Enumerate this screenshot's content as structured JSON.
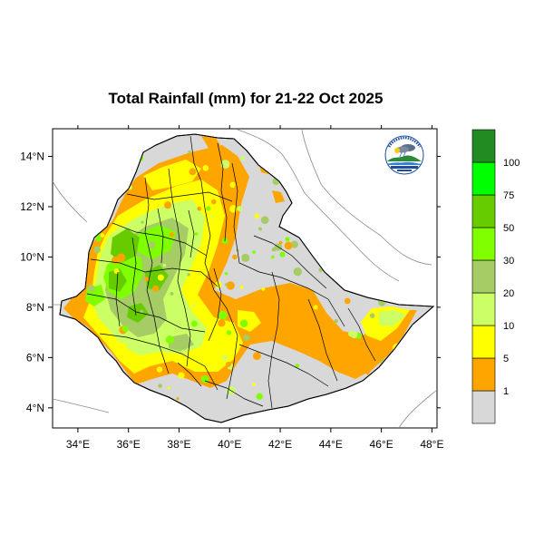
{
  "map": {
    "title": "Total Rainfall (mm) for 21-22 Oct 2025",
    "lon_range": [
      33,
      48.2
    ],
    "lat_range": [
      3.2,
      15.1
    ],
    "x_ticks": [
      {
        "value": 34,
        "label": "34°E"
      },
      {
        "value": 36,
        "label": "36°E"
      },
      {
        "value": 38,
        "label": "38°E"
      },
      {
        "value": 40,
        "label": "40°E"
      },
      {
        "value": 42,
        "label": "42°E"
      },
      {
        "value": 44,
        "label": "44°E"
      },
      {
        "value": 46,
        "label": "46°E"
      },
      {
        "value": 48,
        "label": "48°E"
      }
    ],
    "y_ticks": [
      {
        "value": 4,
        "label": "4°N"
      },
      {
        "value": 6,
        "label": "6°N"
      },
      {
        "value": 8,
        "label": "8°N"
      },
      {
        "value": 10,
        "label": "10°N"
      },
      {
        "value": 12,
        "label": "12°N"
      },
      {
        "value": 14,
        "label": "14°N"
      }
    ],
    "land_color": "#d8d8d8",
    "border_color": "#000000"
  },
  "legend": {
    "bins": [
      {
        "label": "",
        "color": "#d8d8d8"
      },
      {
        "label": "1",
        "color": "#ffa500"
      },
      {
        "label": "5",
        "color": "#ffff00"
      },
      {
        "label": "10",
        "color": "#ccff66"
      },
      {
        "label": "20",
        "color": "#a6cc66"
      },
      {
        "label": "30",
        "color": "#7fff00"
      },
      {
        "label": "50",
        "color": "#66cc00"
      },
      {
        "label": "75",
        "color": "#00ff00"
      },
      {
        "label": "100",
        "color": "#228b22"
      }
    ]
  },
  "logo": {
    "icon": "ethiopian-meteorology-institute-logo"
  }
}
